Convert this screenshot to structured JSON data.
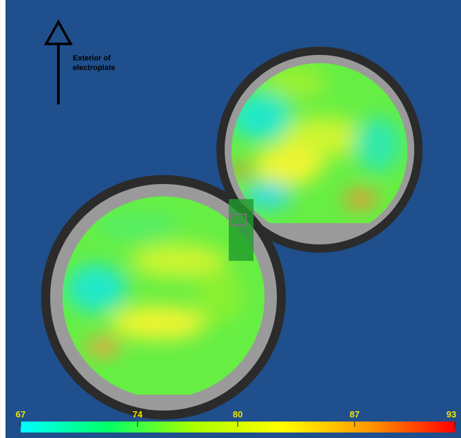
{
  "annotation": "Exterior of electroplate",
  "colorbar": {
    "lim": [
      67,
      93
    ],
    "ticks": [
      67,
      74,
      80,
      87,
      93
    ],
    "colors": [
      "#00ffff",
      "#00ff66",
      "#aaff00",
      "#ffff00",
      "#ff9900",
      "#ff0000"
    ]
  }
}
